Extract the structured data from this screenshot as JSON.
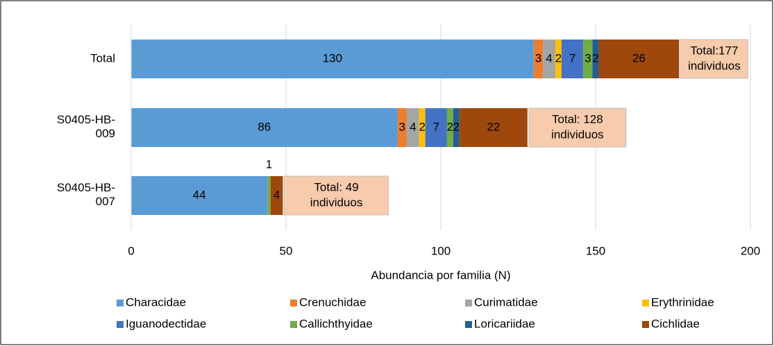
{
  "chart_data": {
    "type": "stacked_barh",
    "x_label": "Abundancia por familia (N)",
    "categories": [
      "Total",
      "S0405-HB-009",
      "S0405-HB-007"
    ],
    "series": [
      {
        "name": "Characidae",
        "color": "#5b9bd5",
        "values": [
          130,
          86,
          44
        ]
      },
      {
        "name": "Crenuchidae",
        "color": "#ed7d31",
        "values": [
          3,
          3,
          0
        ]
      },
      {
        "name": "Curimatidae",
        "color": "#a5a5a5",
        "values": [
          4,
          4,
          0
        ]
      },
      {
        "name": "Erythrinidae",
        "color": "#ffc000",
        "values": [
          2,
          2,
          0
        ]
      },
      {
        "name": "Iguanodectidae",
        "color": "#4472c4",
        "values": [
          7,
          7,
          0
        ]
      },
      {
        "name": "Callichthyidae",
        "color": "#70ad47",
        "values": [
          3,
          2,
          1
        ]
      },
      {
        "name": "Loricariidae",
        "color": "#255e91",
        "values": [
          2,
          2,
          0
        ]
      },
      {
        "name": "Cichlidae",
        "color": "#9e480e",
        "values": [
          26,
          22,
          4
        ]
      }
    ],
    "annotations": [
      {
        "lines": [
          "Total:177",
          "individuos"
        ]
      },
      {
        "lines": [
          "Total: 128",
          "individuos"
        ]
      },
      {
        "lines": [
          "Total: 49",
          "individuos"
        ]
      }
    ],
    "xlim": [
      0,
      200
    ],
    "xticks": [
      0,
      50,
      100,
      150,
      200
    ],
    "grid": true,
    "legend": "bottom"
  }
}
